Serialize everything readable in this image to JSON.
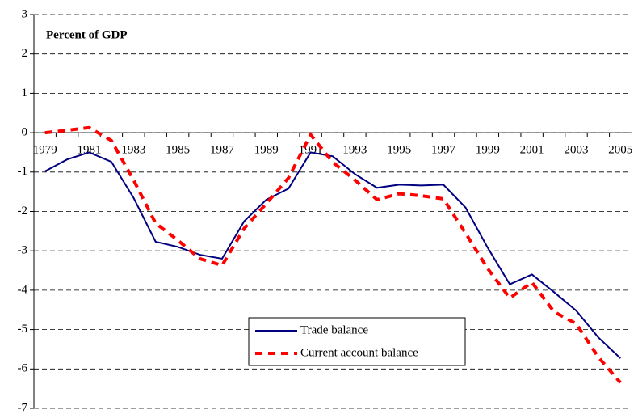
{
  "chart_data": {
    "type": "line",
    "title": "Percent of GDP",
    "categories": [
      "1979",
      null,
      "1981",
      null,
      "1983",
      null,
      "1985",
      null,
      "1987",
      null,
      "1989",
      null,
      "1991",
      null,
      "1993",
      null,
      "1995",
      null,
      "1997",
      null,
      "1999",
      null,
      "2001",
      null,
      "2003",
      null,
      "2005"
    ],
    "series": [
      {
        "name": "Trade balance",
        "color": "#000080",
        "dash": false,
        "values": [
          -0.98,
          -0.68,
          -0.5,
          -0.74,
          -1.65,
          -2.77,
          -2.9,
          -3.1,
          -3.2,
          -2.25,
          -1.7,
          -1.42,
          -0.5,
          -0.6,
          -1.05,
          -1.4,
          -1.32,
          -1.34,
          -1.32,
          -1.9,
          -2.92,
          -3.85,
          -3.6,
          -4.05,
          -4.52,
          -5.2,
          -5.73
        ]
      },
      {
        "name": "Current account balance",
        "color": "#ff0000",
        "dash": true,
        "values": [
          0.0,
          0.06,
          0.13,
          -0.2,
          -1.2,
          -2.3,
          -2.73,
          -3.2,
          -3.37,
          -2.43,
          -1.8,
          -1.15,
          -0.05,
          -0.75,
          -1.2,
          -1.7,
          -1.55,
          -1.6,
          -1.68,
          -2.55,
          -3.45,
          -4.2,
          -3.8,
          -4.55,
          -4.85,
          -5.7,
          -6.35
        ]
      }
    ],
    "ylim": [
      -7,
      3
    ],
    "yticks": [
      -7,
      -6,
      -5,
      -4,
      -3,
      -2,
      -1,
      0,
      1,
      2,
      3
    ],
    "grid": true
  }
}
